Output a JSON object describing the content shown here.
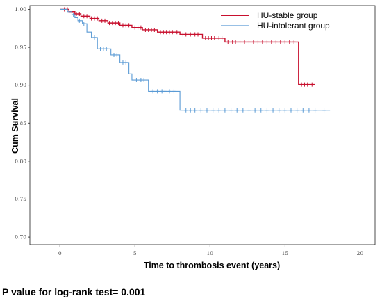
{
  "chart_data": {
    "type": "line",
    "title": "",
    "xlabel": "Time to thrombosis event (years)",
    "ylabel": "Cum Survival",
    "xlim": [
      -2,
      21
    ],
    "ylim": [
      0.69,
      1.005
    ],
    "x_ticks": [
      0,
      5,
      10,
      15,
      20
    ],
    "x_tick_labels": [
      "0",
      "5",
      "10",
      "15",
      "20"
    ],
    "y_ticks": [
      0.7,
      0.75,
      0.8,
      0.85,
      0.9,
      0.95,
      1.0
    ],
    "y_tick_labels": [
      "0.70",
      "0.75",
      "0.80",
      "0.85",
      "0.90",
      "0.95",
      "1.00"
    ],
    "grid": false,
    "legend_position": "top-right",
    "series": [
      {
        "name": "HU-stable group",
        "color": "#c8102e",
        "steps": [
          [
            0,
            1.0
          ],
          [
            0.6,
            0.997
          ],
          [
            1.0,
            0.994
          ],
          [
            1.4,
            0.991
          ],
          [
            2.0,
            0.988
          ],
          [
            2.6,
            0.985
          ],
          [
            3.2,
            0.982
          ],
          [
            4.0,
            0.979
          ],
          [
            4.8,
            0.976
          ],
          [
            5.5,
            0.973
          ],
          [
            6.5,
            0.97
          ],
          [
            8.0,
            0.967
          ],
          [
            9.5,
            0.962
          ],
          [
            11.0,
            0.957
          ],
          [
            15.9,
            0.901
          ],
          [
            17.0,
            0.901
          ]
        ],
        "censored": [
          0.3,
          0.5,
          0.8,
          1.1,
          1.3,
          1.6,
          1.8,
          2.1,
          2.3,
          2.5,
          2.8,
          3.0,
          3.3,
          3.5,
          3.7,
          3.9,
          4.2,
          4.4,
          4.6,
          5.0,
          5.2,
          5.4,
          5.7,
          5.9,
          6.1,
          6.3,
          6.7,
          6.9,
          7.1,
          7.3,
          7.5,
          7.8,
          8.2,
          8.4,
          8.7,
          9.0,
          9.2,
          9.7,
          9.9,
          10.1,
          10.3,
          10.6,
          10.8,
          11.2,
          11.5,
          11.7,
          12.0,
          12.3,
          12.6,
          12.9,
          13.2,
          13.5,
          13.8,
          14.1,
          14.4,
          14.7,
          15.0,
          15.3,
          15.6,
          16.1,
          16.3,
          16.5,
          16.8
        ]
      },
      {
        "name": "HU-intolerant group",
        "color": "#5b9bd5",
        "steps": [
          [
            0,
            1.0
          ],
          [
            0.5,
            0.997
          ],
          [
            0.8,
            0.993
          ],
          [
            1.0,
            0.989
          ],
          [
            1.2,
            0.985
          ],
          [
            1.5,
            0.981
          ],
          [
            1.8,
            0.97
          ],
          [
            2.1,
            0.963
          ],
          [
            2.5,
            0.948
          ],
          [
            3.4,
            0.94
          ],
          [
            4.0,
            0.93
          ],
          [
            4.6,
            0.915
          ],
          [
            4.8,
            0.907
          ],
          [
            5.9,
            0.892
          ],
          [
            8.0,
            0.867
          ],
          [
            18.0,
            0.867
          ]
        ],
        "censored": [
          0.9,
          1.3,
          1.6,
          2.3,
          2.7,
          2.9,
          3.1,
          3.6,
          3.8,
          4.2,
          4.4,
          5.1,
          5.4,
          5.6,
          6.2,
          6.5,
          6.8,
          7.0,
          7.3,
          7.6,
          8.4,
          8.7,
          9.0,
          9.4,
          9.8,
          10.2,
          10.6,
          11.0,
          11.4,
          11.8,
          12.2,
          12.6,
          13.0,
          13.4,
          13.8,
          14.2,
          14.6,
          15.0,
          15.4,
          15.8,
          16.2,
          16.6,
          17.0,
          17.6
        ]
      }
    ],
    "footnote": "P value for log-rank test= 0.001"
  }
}
